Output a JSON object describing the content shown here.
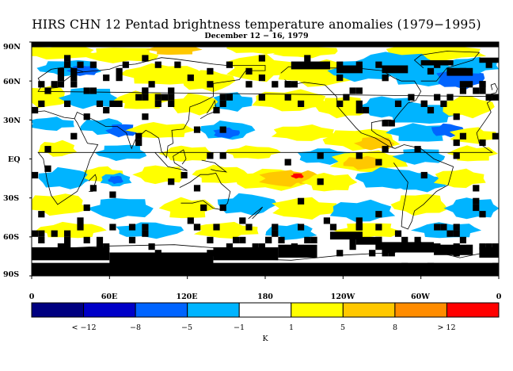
{
  "title": "HIRS CHN 12 Pentad brightness temperature anomalies (1979−1995)",
  "subtitle": "December 12 − 16, 1979",
  "lat_labels": [
    "90N",
    "60N",
    "30N",
    "EQ",
    "30S",
    "60S",
    "90S"
  ],
  "lon_labels": [
    "0",
    "60E",
    "120E",
    "180",
    "120W",
    "60W",
    "0"
  ],
  "colorbar": {
    "colors": [
      "#000080",
      "#0000c8",
      "#0064ff",
      "#00b4ff",
      "#ffffff",
      "#ffff00",
      "#ffc800",
      "#ff8c00",
      "#ff0000"
    ],
    "labels": [
      "< −12",
      "−8",
      "−5",
      "−1",
      "1",
      "5",
      "8",
      "> 12"
    ],
    "units": "K"
  },
  "missing_color": "#000000"
}
